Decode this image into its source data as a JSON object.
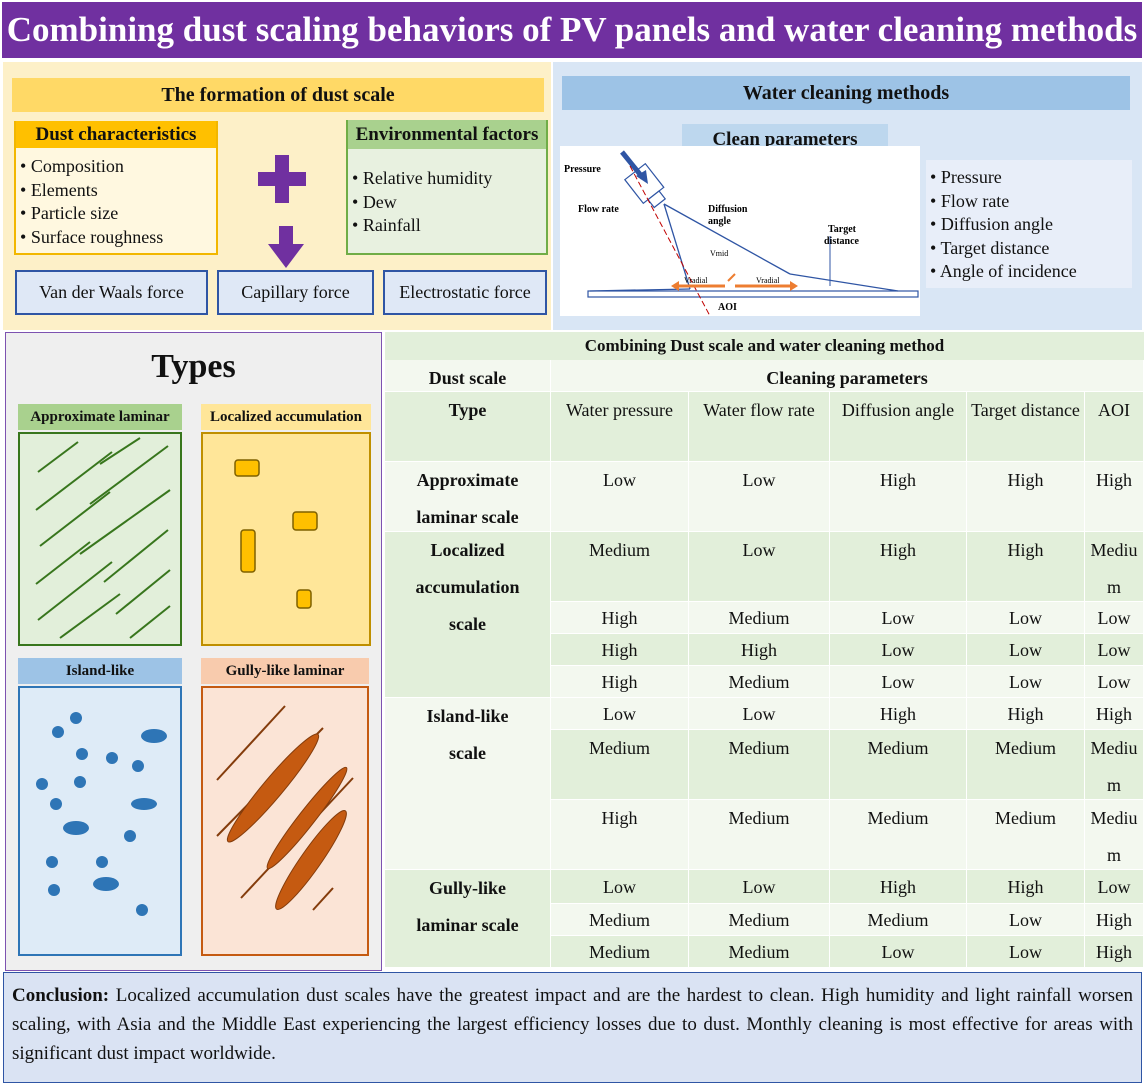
{
  "title": "Combining dust scaling behaviors of PV panels and water cleaning methods",
  "formation": {
    "header": "The formation of dust scale",
    "dust_characteristics": {
      "header": "Dust characteristics",
      "items": [
        "Composition",
        "Elements",
        "Particle size",
        "Surface roughness"
      ]
    },
    "environmental_factors": {
      "header": "Environmental factors",
      "items": [
        "Relative humidity",
        "Dew",
        "Rainfall"
      ]
    },
    "forces": [
      "Van der Waals force",
      "Capillary force",
      "Electrostatic force"
    ]
  },
  "water_cleaning": {
    "header": "Water cleaning methods",
    "clean_params_header": "Clean parameters",
    "diagram_labels": {
      "pressure": "Pressure",
      "flow_rate": "Flow rate",
      "diffusion": "Diffusion",
      "angle": "angle",
      "target": "Target",
      "distance": "distance",
      "v_mid": "Vmid",
      "v_radial_left": "Vradial",
      "v_radial_right": "Vradial",
      "aoi": "AOI"
    },
    "parameters": [
      "Pressure",
      "Flow rate",
      "Diffusion angle",
      "Target distance",
      "Angle of incidence"
    ]
  },
  "types": {
    "title": "Types",
    "items": [
      {
        "label": "Approximate laminar",
        "color": "#a9d18e",
        "border": "#38761d"
      },
      {
        "label": "Localized accumulation",
        "color": "#ffe699",
        "border": "#bf8f00"
      },
      {
        "label": "Island-like",
        "color": "#9dc3e6",
        "border": "#2e75b6"
      },
      {
        "label": "Gully-like laminar",
        "color": "#f8cbad",
        "border": "#c55a11"
      }
    ]
  },
  "table": {
    "caption": "Combining Dust scale and water cleaning method",
    "header_dust_scale": "Dust scale",
    "header_cleaning": "Cleaning parameters",
    "header_type": "Type",
    "columns": [
      "Water pressure",
      "Water flow rate",
      "Diffusion angle",
      "Target distance",
      "AOI"
    ],
    "groups": [
      {
        "name": "Approximate laminar scale",
        "rows": [
          [
            "Low",
            "Low",
            "High",
            "High",
            "High"
          ]
        ]
      },
      {
        "name": "Localized accumulation scale",
        "rows": [
          [
            "Medium",
            "Low",
            "High",
            "High",
            "Medium"
          ],
          [
            "High",
            "Medium",
            "Low",
            "Low",
            "Low"
          ],
          [
            "High",
            "High",
            "Low",
            "Low",
            "Low"
          ],
          [
            "High",
            "Medium",
            "Low",
            "Low",
            "Low"
          ]
        ]
      },
      {
        "name": "Island-like scale",
        "rows": [
          [
            "Low",
            "Low",
            "High",
            "High",
            "High"
          ],
          [
            "Medium",
            "Medium",
            "Medium",
            "Medium",
            "Medium"
          ],
          [
            "High",
            "Medium",
            "Medium",
            "Medium",
            "Medium"
          ]
        ]
      },
      {
        "name": "Gully-like laminar scale",
        "rows": [
          [
            "Low",
            "Low",
            "High",
            "High",
            "Low"
          ],
          [
            "Medium",
            "Medium",
            "Medium",
            "Low",
            "High"
          ],
          [
            "Medium",
            "Medium",
            "Low",
            "Low",
            "High"
          ]
        ]
      }
    ]
  },
  "conclusion": {
    "label": "Conclusion:",
    "text": " Localized accumulation dust scales have the greatest impact and are the hardest to clean. High humidity and light rainfall worsen scaling, with Asia and the Middle East experiencing the largest efficiency losses due to dust. Monthly cleaning is most effective for areas with significant dust impact worldwide."
  }
}
